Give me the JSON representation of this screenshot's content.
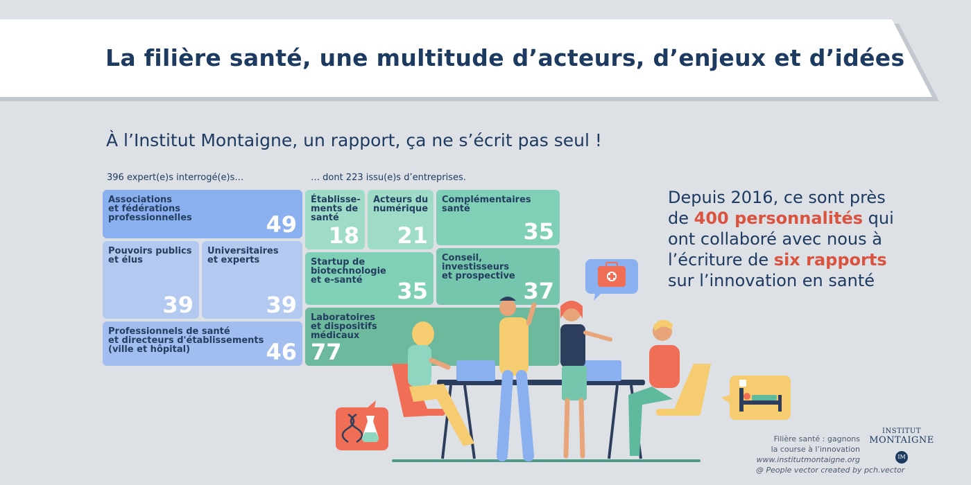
{
  "title": "La filière santé, une multitude d’acteurs, d’enjeux et d’idées",
  "subtitle": "À l’Institut Montaigne, un rapport, ça ne s’écrit pas seul !",
  "left_caption": "396 expert(e)s interrogé(e)s…",
  "right_caption": "… dont 223 issu(e)s d’entreprises.",
  "tiles": {
    "associations": {
      "label": "Associations\net fédérations\nprofessionnelles",
      "value": "49"
    },
    "pouvoirs": {
      "label": "Pouvoirs publics\net élus",
      "value": "39"
    },
    "universitaires": {
      "label": "Universitaires\net experts",
      "value": "39"
    },
    "professionnels": {
      "label": "Professionnels de santé\net directeurs d'établissements\n(ville et hôpital)",
      "value": "46"
    },
    "etablissements": {
      "label": "Établisse-\nments de\nsanté",
      "value": "18"
    },
    "numerique": {
      "label": "Acteurs du\nnumérique",
      "value": "21"
    },
    "complementaires": {
      "label": "Complémentaires\nsanté",
      "value": "35"
    },
    "startup": {
      "label": "Startup de\nbiotechnologie\net e-santé",
      "value": "35"
    },
    "conseil": {
      "label": "Conseil,\ninvestisseurs\net prospective",
      "value": "37"
    },
    "laboratoires": {
      "label": "Laboratoires\net dispositifs\nmédicaux",
      "value": "77"
    }
  },
  "side_text": {
    "part1": "Depuis 2016, ce sont près de ",
    "highlight1": "400 personnalités",
    "part2": " qui ont collaboré avec nous à l’écriture de ",
    "highlight2": "six rapports",
    "part3": " sur l’innovation en santé"
  },
  "footer": {
    "line1": "Filière santé : gagnons",
    "line2": "la course à l’innovation",
    "url": "www.institutmontaigne.org",
    "credit": "@ People vector created by pch.vector"
  },
  "logo": {
    "line1": "INSTITUT",
    "line2": "MONTAIGNE",
    "mark": "IM"
  },
  "colors": {
    "navy": "#1d3a60",
    "blue_dark": "#8ab0ef",
    "blue_light": "#b3c9ef",
    "teal_light": "#8fd6c0",
    "teal_mid": "#76c8b0",
    "teal_dark": "#6cb99d",
    "accent_red": "#d9533f"
  }
}
